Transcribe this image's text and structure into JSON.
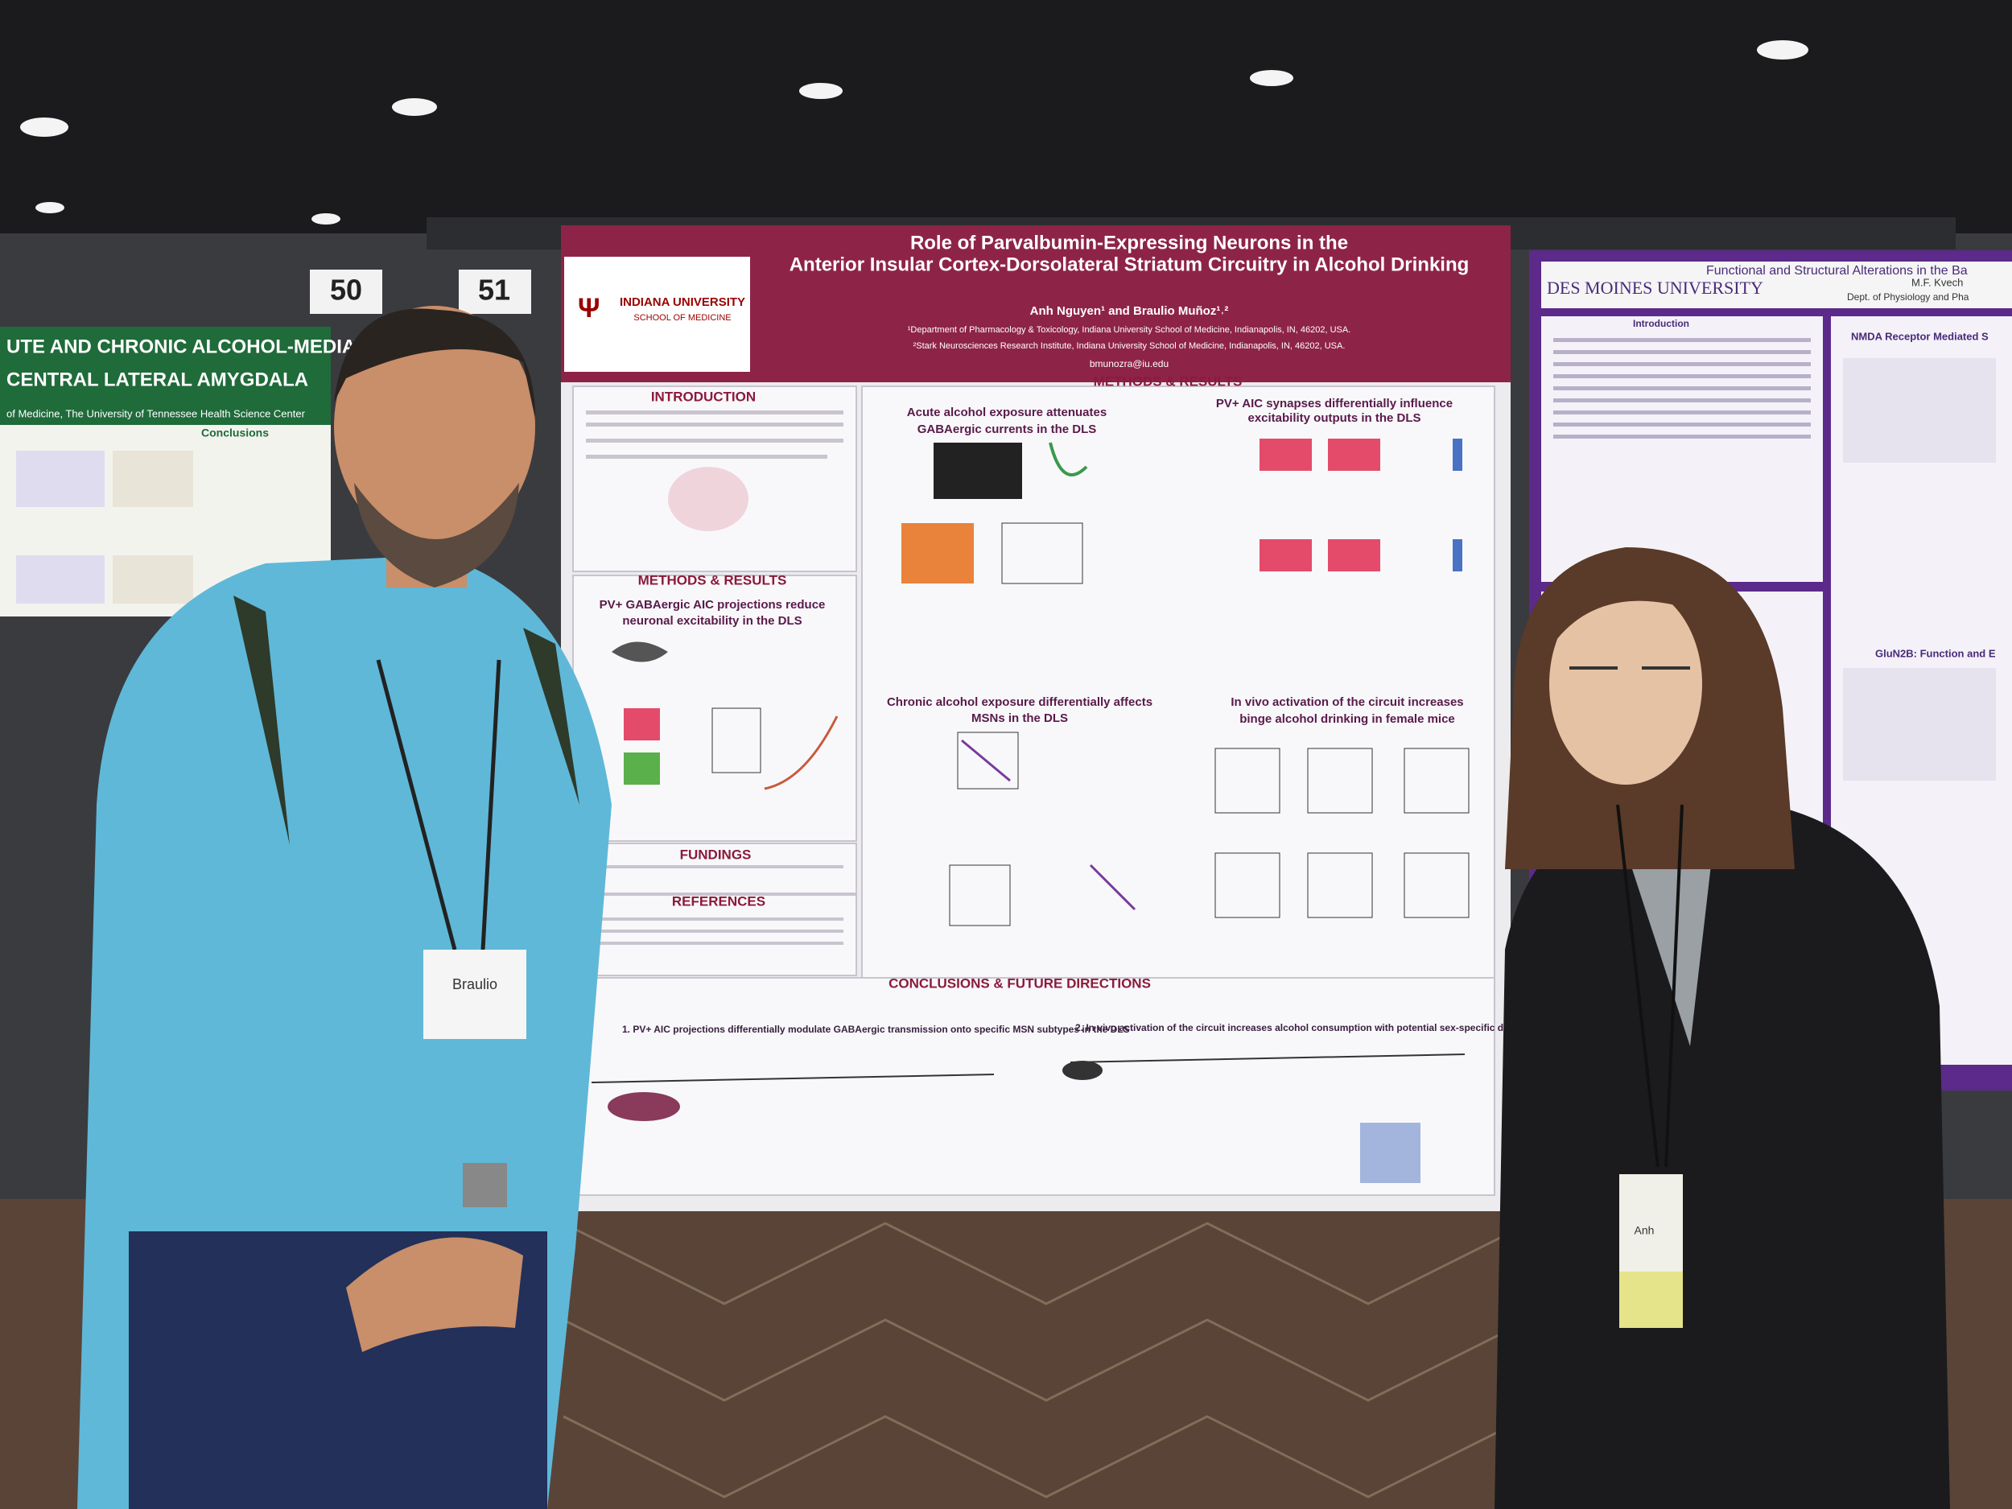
{
  "board_numbers": [
    "50",
    "51"
  ],
  "left_poster": {
    "title_lines": [
      "UTE AND CHRONIC ALCOHOL-MEDIATED",
      "CENTRAL LATERAL AMYGDALA"
    ],
    "affiliation": "of Medicine, The University of Tennessee Health Science Center",
    "section": "Conclusions"
  },
  "main_poster": {
    "institution": "INDIANA UNIVERSITY",
    "school": "SCHOOL OF MEDICINE",
    "title_lines": [
      "Role of Parvalbumin-Expressing Neurons in the",
      "Anterior Insular Cortex-Dorsolateral Striatum Circuitry in Alcohol Drinking"
    ],
    "authors": "Anh Nguyen¹ and Braulio Muñoz¹˒²",
    "affiliations": [
      "¹Department of Pharmacology & Toxicology, Indiana University School of Medicine, Indianapolis, IN, 46202, USA.",
      "²Stark Neurosciences Research Institute, Indiana University School of Medicine, Indianapolis, IN, 46202, USA."
    ],
    "email": "bmunozra@iu.edu",
    "sections": {
      "introduction": "INTRODUCTION",
      "methods_left": "METHODS & RESULTS",
      "methods_main": "METHODS & RESULTS",
      "fundings": "FUNDINGS",
      "references": "REFERENCES",
      "conclusions": "CONCLUSIONS & FUTURE DIRECTIONS"
    },
    "figure_headings": {
      "pv_gabaergic": [
        "PV+ GABAergic AIC projections reduce",
        "neuronal excitability in the DLS"
      ],
      "acute": [
        "Acute alcohol exposure attenuates",
        "GABAergic currents in the DLS"
      ],
      "pv_synapses": [
        "PV+ AIC synapses differentially influence",
        "excitability outputs in the DLS"
      ],
      "chronic": [
        "Chronic alcohol exposure differentially affects",
        "MSNs in the DLS"
      ],
      "in_vivo": [
        "In vivo activation of the circuit increases",
        "binge alcohol drinking in female mice"
      ]
    },
    "conclusions": [
      "1. PV+ AIC projections differentially modulate GABAergic transmission onto specific MSN subtypes in the DLS",
      "2. In vivo activation of the circuit increases alcohol consumption with potential sex-specific differences"
    ]
  },
  "right_poster": {
    "institution": "DES MOINES UNIVERSITY",
    "title": "Functional and Structural Alterations in the Ba",
    "author": "M.F. Kvech",
    "department": "Dept. of Physiology and Pha",
    "sections": [
      "Introduction",
      "NMDA Receptor Mediated S",
      "GluN2B: Function and E"
    ]
  },
  "badges": [
    "Braulio",
    "Anh"
  ]
}
